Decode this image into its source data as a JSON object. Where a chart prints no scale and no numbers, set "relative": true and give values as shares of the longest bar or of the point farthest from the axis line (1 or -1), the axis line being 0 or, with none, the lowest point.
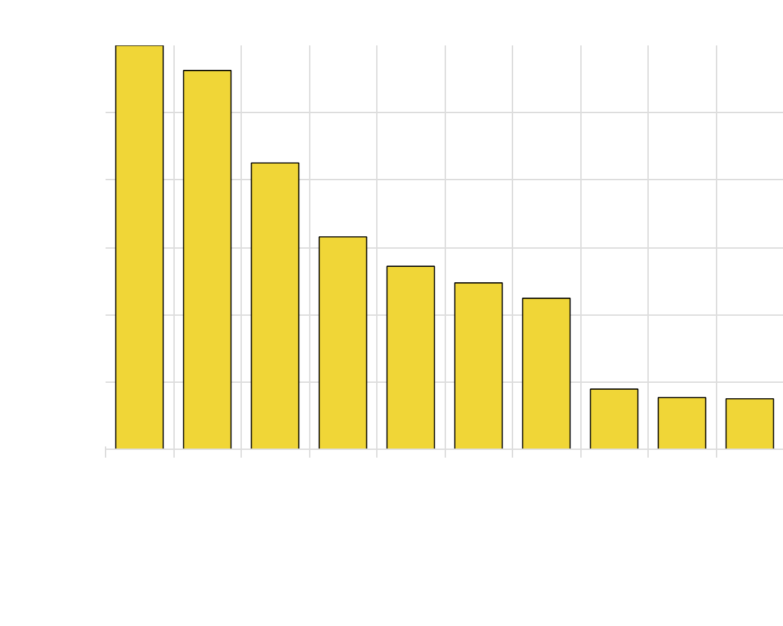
{
  "chart_data": {
    "type": "bar",
    "relative": true,
    "categories": [
      null,
      null,
      null,
      null,
      null,
      null,
      null,
      null,
      null,
      null
    ],
    "series": [
      {
        "color": "#f0d637",
        "values": [
          1,
          0.938,
          0.709,
          0.526,
          0.453,
          0.412,
          0.374,
          0.149,
          0.128,
          0.125
        ]
      }
    ],
    "grid": true
  }
}
